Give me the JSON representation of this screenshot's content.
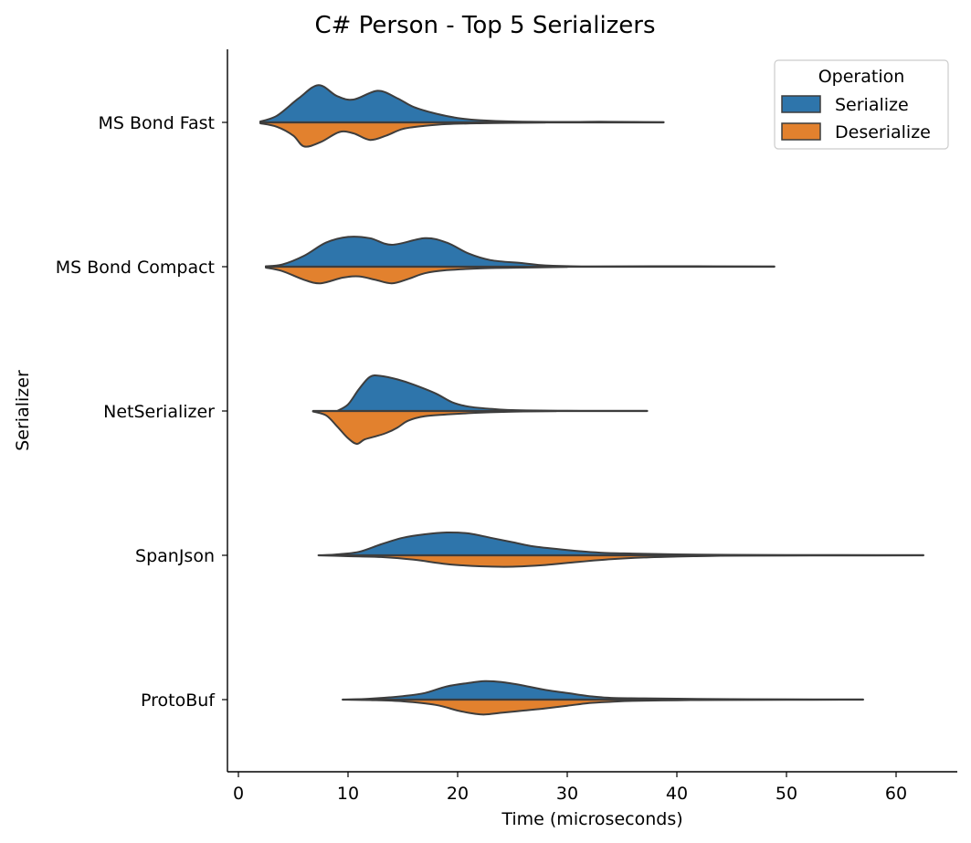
{
  "chart_data": {
    "type": "violin",
    "title": "C# Person - Top 5 Serializers",
    "xlabel": "Time (microseconds)",
    "ylabel": "Serializer",
    "xlim": [
      -1,
      65
    ],
    "xticks": [
      0,
      10,
      20,
      30,
      40,
      50,
      60
    ],
    "categories": [
      "MS Bond Fast",
      "MS Bond Compact",
      "NetSerializer",
      "SpanJson",
      "ProtoBuf"
    ],
    "legend": {
      "title": "Operation",
      "position": "top-right",
      "entries": [
        {
          "label": "Serialize",
          "color": "#2e75ab"
        },
        {
          "label": "Deserialize",
          "color": "#e2812e"
        }
      ]
    },
    "series": [
      {
        "name": "Serialize",
        "side": "top",
        "color": "#2e75ab",
        "violins": [
          {
            "category": "MS Bond Fast",
            "profile": [
              [
                2.0,
                0.02
              ],
              [
                3.5,
                0.15
              ],
              [
                5.5,
                0.55
              ],
              [
                7.3,
                0.85
              ],
              [
                9,
                0.6
              ],
              [
                10.5,
                0.52
              ],
              [
                12.7,
                0.72
              ],
              [
                14.5,
                0.55
              ],
              [
                16,
                0.35
              ],
              [
                18,
                0.2
              ],
              [
                20,
                0.1
              ],
              [
                22,
                0.05
              ],
              [
                25,
                0.02
              ],
              [
                30,
                0.01
              ],
              [
                33,
                0.015
              ],
              [
                36,
                0.01
              ],
              [
                38.8,
                0.005
              ]
            ]
          },
          {
            "category": "MS Bond Compact",
            "profile": [
              [
                2.5,
                0.01
              ],
              [
                4,
                0.05
              ],
              [
                6,
                0.25
              ],
              [
                8,
                0.55
              ],
              [
                10,
                0.68
              ],
              [
                12,
                0.65
              ],
              [
                14,
                0.5
              ],
              [
                17,
                0.65
              ],
              [
                19,
                0.55
              ],
              [
                21,
                0.3
              ],
              [
                23,
                0.15
              ],
              [
                26,
                0.08
              ],
              [
                28,
                0.03
              ],
              [
                32,
                0.005
              ],
              [
                40,
                0.01
              ],
              [
                48.9,
                0.005
              ]
            ]
          },
          {
            "category": "NetSerializer",
            "profile": [
              [
                9,
                0.0
              ],
              [
                10,
                0.15
              ],
              [
                11,
                0.5
              ],
              [
                12,
                0.78
              ],
              [
                13,
                0.8
              ],
              [
                14.5,
                0.72
              ],
              [
                16,
                0.6
              ],
              [
                18,
                0.4
              ],
              [
                19.5,
                0.2
              ],
              [
                21,
                0.1
              ],
              [
                23,
                0.05
              ],
              [
                25,
                0.02
              ],
              [
                30,
                0.005
              ],
              [
                37.3,
                0.002
              ]
            ]
          },
          {
            "category": "SpanJson",
            "profile": [
              [
                7.5,
                0.0
              ],
              [
                9,
                0.02
              ],
              [
                11,
                0.08
              ],
              [
                13,
                0.25
              ],
              [
                15,
                0.4
              ],
              [
                17,
                0.48
              ],
              [
                19,
                0.52
              ],
              [
                21,
                0.5
              ],
              [
                23,
                0.4
              ],
              [
                25,
                0.3
              ],
              [
                27,
                0.2
              ],
              [
                30,
                0.12
              ],
              [
                33,
                0.06
              ],
              [
                36,
                0.04
              ],
              [
                40,
                0.02
              ],
              [
                45,
                0.01
              ],
              [
                50,
                0.005
              ],
              [
                55,
                0.005
              ],
              [
                62.5,
                0.002
              ]
            ]
          },
          {
            "category": "ProtoBuf",
            "profile": [
              [
                9.5,
                0.0
              ],
              [
                12,
                0.02
              ],
              [
                15,
                0.08
              ],
              [
                17,
                0.15
              ],
              [
                19,
                0.3
              ],
              [
                21,
                0.38
              ],
              [
                22.5,
                0.42
              ],
              [
                24,
                0.4
              ],
              [
                26,
                0.32
              ],
              [
                28,
                0.22
              ],
              [
                30,
                0.15
              ],
              [
                32,
                0.08
              ],
              [
                34,
                0.04
              ],
              [
                37,
                0.03
              ],
              [
                40,
                0.02
              ],
              [
                45,
                0.01
              ],
              [
                50,
                0.005
              ],
              [
                57,
                0.002
              ]
            ]
          }
        ]
      },
      {
        "name": "Deserialize",
        "side": "bottom",
        "color": "#e2812e",
        "violins": [
          {
            "category": "MS Bond Fast",
            "profile": [
              [
                2.0,
                0.02
              ],
              [
                3.5,
                0.1
              ],
              [
                5,
                0.3
              ],
              [
                6,
                0.55
              ],
              [
                7.5,
                0.45
              ],
              [
                9.2,
                0.22
              ],
              [
                10.5,
                0.25
              ],
              [
                12,
                0.4
              ],
              [
                13.5,
                0.3
              ],
              [
                15,
                0.15
              ],
              [
                17,
                0.08
              ],
              [
                19,
                0.04
              ],
              [
                22,
                0.02
              ],
              [
                25,
                0.01
              ],
              [
                28,
                0.003
              ]
            ]
          },
          {
            "category": "MS Bond Compact",
            "profile": [
              [
                2.5,
                0.02
              ],
              [
                4,
                0.1
              ],
              [
                6,
                0.3
              ],
              [
                7.5,
                0.38
              ],
              [
                9.5,
                0.25
              ],
              [
                11,
                0.22
              ],
              [
                12.5,
                0.3
              ],
              [
                14,
                0.38
              ],
              [
                15.5,
                0.28
              ],
              [
                17,
                0.15
              ],
              [
                19,
                0.08
              ],
              [
                22,
                0.04
              ],
              [
                26,
                0.02
              ],
              [
                30,
                0.005
              ]
            ]
          },
          {
            "category": "NetSerializer",
            "profile": [
              [
                6.8,
                0.01
              ],
              [
                8,
                0.1
              ],
              [
                9,
                0.35
              ],
              [
                10,
                0.62
              ],
              [
                10.8,
                0.75
              ],
              [
                11.5,
                0.65
              ],
              [
                12.5,
                0.58
              ],
              [
                13.5,
                0.5
              ],
              [
                14.5,
                0.38
              ],
              [
                15.5,
                0.22
              ],
              [
                17,
                0.12
              ],
              [
                19,
                0.08
              ],
              [
                21,
                0.05
              ],
              [
                23,
                0.03
              ],
              [
                26,
                0.01
              ],
              [
                29,
                0.002
              ]
            ]
          },
          {
            "category": "SpanJson",
            "profile": [
              [
                7.3,
                0.0
              ],
              [
                10,
                0.02
              ],
              [
                13,
                0.04
              ],
              [
                16,
                0.1
              ],
              [
                19,
                0.2
              ],
              [
                22,
                0.25
              ],
              [
                25,
                0.26
              ],
              [
                28,
                0.22
              ],
              [
                31,
                0.15
              ],
              [
                34,
                0.09
              ],
              [
                37,
                0.05
              ],
              [
                40,
                0.03
              ],
              [
                43,
                0.015
              ],
              [
                46,
                0.008
              ],
              [
                50,
                0.004
              ],
              [
                55,
                0.002
              ],
              [
                62,
                0.001
              ]
            ]
          },
          {
            "category": "ProtoBuf",
            "profile": [
              [
                9.8,
                0.0
              ],
              [
                12,
                0.01
              ],
              [
                15,
                0.04
              ],
              [
                18,
                0.12
              ],
              [
                20,
                0.25
              ],
              [
                21.5,
                0.32
              ],
              [
                22.5,
                0.34
              ],
              [
                24,
                0.3
              ],
              [
                26,
                0.25
              ],
              [
                28,
                0.2
              ],
              [
                30,
                0.14
              ],
              [
                32,
                0.08
              ],
              [
                34,
                0.05
              ],
              [
                36,
                0.03
              ],
              [
                40,
                0.015
              ],
              [
                44,
                0.008
              ],
              [
                50,
                0.003
              ],
              [
                55,
                0.001
              ]
            ]
          }
        ]
      }
    ]
  }
}
